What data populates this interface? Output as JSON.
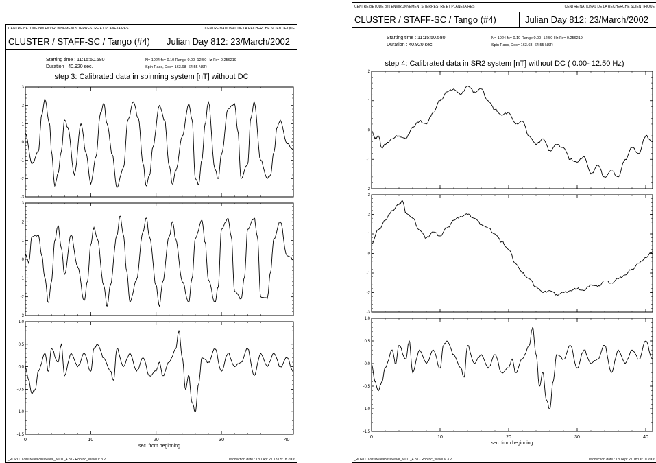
{
  "pages": [
    {
      "topbar_left": "CENTRE d'ETUDE des ENVIRONNEMENTS TERRESTRE ET PLANETAIRES",
      "topbar_right": "CENTRE NATIONAL DE LA RECHERCHE SCIENTIFIQUE",
      "header_title": "CLUSTER / STAFF-SC / Tango  (#4)",
      "header_julian": "Julian Day  812:  23/March/2002",
      "starting_time": "Starting time :  11:15:50.580",
      "duration": "Duration :    40.920 sec.",
      "params_line1": "N=    1024  fc=  0.10  Range    0.00-  12.50 Hz  Fs=  0.256219",
      "params_line2": "Spin Rasc, Dec=  163.68  -64.55  NSR",
      "plot_title": "step 3: Calibrated data in spinning system [nT] without DC",
      "xlabel": "sec. from beginning",
      "footer_left": "_ROPLOT/visuwave/visuwave_w001_4.ps   - Roproc_Wave V 3.2",
      "footer_right": "Production date : Thu Apr 27 18:05:18 2006"
    },
    {
      "topbar_left": "CENTRE d'ETUDE des ENVIRONNEMENTS TERRESTRE ET PLANETAIRES",
      "topbar_right": "CENTRE NATIONAL DE LA RECHERCHE SCIENTIFIQUE",
      "header_title": "CLUSTER / STAFF-SC / Tango  (#4)",
      "header_julian": "Julian Day  812:  23/March/2002",
      "starting_time": "Starting time :  11:15:50.580",
      "duration": "Duration :    40.920 sec.",
      "params_line1": "N=    1024  fc=  0.10  Range    0.00-  12.50 Hz  Fs=  0.256219",
      "params_line2": "Spin Rasc, Dec=  163.68  -64.55  NSR",
      "plot_title": "step 4: Calibrated data in SR2 system [nT] without DC  (  0.00-  12.50 Hz)",
      "xlabel": "sec. from beginning",
      "footer_left": "_ROPLOT/visuwave/visuwave_w001_4.ps   - Roproc_Wave V 3.2",
      "footer_right": "Production date : Thu Apr 27 18:06:10 2006"
    }
  ],
  "chart_data": [
    {
      "type": "line",
      "title": "step 3: Calibrated data in spinning system [nT] without DC",
      "xlabel": "sec. from beginning",
      "xlim": [
        0,
        41
      ],
      "xticks": [
        0,
        10,
        20,
        30,
        40
      ],
      "panels": [
        {
          "ylim": [
            -3,
            3
          ],
          "yticks": [
            -3,
            -2,
            -1,
            0,
            1,
            2,
            3
          ],
          "x": [
            0,
            1,
            2,
            2.5,
            3,
            3.7,
            4,
            4.5,
            5,
            5.5,
            6,
            6.5,
            7.5,
            8.5,
            9.3,
            10,
            10.8,
            11.5,
            12,
            12.5,
            13.3,
            14,
            15,
            15.7,
            16.5,
            17.3,
            18,
            18.5,
            19,
            19.5,
            20.5,
            21.3,
            22,
            22.5,
            23,
            24,
            25,
            25.5,
            26,
            26.5,
            27,
            27.5,
            28,
            29,
            29.5,
            30,
            31,
            32,
            32.5,
            33,
            34,
            34.5,
            35,
            36,
            37,
            37.5,
            38,
            38.5,
            39,
            40,
            41
          ],
          "y": [
            0.5,
            -1.2,
            -0.5,
            1.5,
            2.3,
            1.0,
            -0.5,
            -2.4,
            -1.7,
            -0.5,
            1.2,
            0.8,
            -1.8,
            1.0,
            -0.6,
            -2.3,
            -0.8,
            1.6,
            2.1,
            1.0,
            -0.7,
            -2.5,
            -1.4,
            1.2,
            2.2,
            1.3,
            -1.2,
            -2.4,
            -1.8,
            -0.3,
            2.0,
            1.2,
            -1.3,
            -2.3,
            -1.6,
            0.3,
            2.1,
            1.2,
            -2.0,
            -2.3,
            -1.0,
            1.0,
            2.2,
            -1.5,
            -2.0,
            -0.7,
            1.8,
            2.1,
            0.6,
            -2.0,
            -1.2,
            1.3,
            2.2,
            -1.0,
            -2.0,
            -1.8,
            -0.6,
            0.8,
            1.2,
            -0.1,
            -0.4
          ]
        },
        {
          "ylim": [
            -3,
            3
          ],
          "yticks": [
            -3,
            -2,
            -1,
            0,
            1,
            2,
            3
          ],
          "x": [
            0,
            0.5,
            1,
            2,
            2.5,
            3,
            3.5,
            4,
            4.5,
            5,
            5.5,
            6,
            7,
            8,
            9,
            9.5,
            10,
            10.5,
            11,
            12,
            12.5,
            13,
            14,
            14.5,
            15,
            15.5,
            16,
            17,
            18,
            18.5,
            19,
            20,
            20.5,
            21,
            22,
            22.5,
            23,
            24,
            25,
            25.5,
            26,
            27,
            27.5,
            28,
            29,
            29.5,
            30,
            31,
            31.5,
            32,
            33,
            33.5,
            34,
            35,
            35.5,
            36,
            37,
            37.5,
            38,
            39,
            40,
            41
          ],
          "y": [
            0.3,
            -0.2,
            1.2,
            1.3,
            0.2,
            -1.0,
            -2.3,
            -1.2,
            1.0,
            1.8,
            0.6,
            -0.8,
            1.3,
            -0.4,
            -2.2,
            -1.2,
            0.8,
            1.7,
            1.1,
            -1.4,
            -2.5,
            -1.4,
            1.3,
            2.3,
            1.3,
            -0.6,
            -2.3,
            -1.1,
            1.5,
            2.2,
            1.2,
            -1.4,
            -2.5,
            -1.2,
            1.2,
            2.0,
            1.1,
            -1.2,
            -2.3,
            -1.0,
            1.1,
            2.1,
            0.9,
            -1.1,
            -2.3,
            -1.5,
            1.6,
            2.2,
            1.2,
            -1.7,
            -2.1,
            -1.0,
            1.6,
            2.2,
            1.2,
            -2.0,
            -2.1,
            -0.7,
            1.1,
            2.0,
            0.2,
            0.0
          ]
        },
        {
          "ylim": [
            -1.5,
            1.0
          ],
          "yticks": [
            -1.5,
            -1.0,
            -0.5,
            0.0,
            0.5,
            1.0
          ],
          "x": [
            0,
            0.5,
            1,
            1.5,
            2,
            3,
            3.5,
            4,
            5,
            5.5,
            6,
            7,
            8,
            9,
            10,
            10.5,
            11,
            12,
            13,
            13.5,
            14,
            15,
            16,
            17,
            18,
            19,
            20,
            20.5,
            21,
            22,
            23,
            23.5,
            24,
            24.5,
            25,
            25.5,
            26,
            26.5,
            27,
            28,
            29,
            30,
            31,
            32,
            33,
            34,
            35,
            36,
            37,
            38,
            39,
            40,
            41
          ],
          "y": [
            0.0,
            -0.3,
            -0.6,
            -0.5,
            -0.1,
            0.3,
            -0.1,
            0.4,
            0.1,
            0.5,
            -0.2,
            0.3,
            0.0,
            0.3,
            -0.1,
            0.4,
            0.5,
            0.2,
            -0.1,
            -0.3,
            0.4,
            0.0,
            0.3,
            -0.1,
            0.2,
            -0.2,
            -0.1,
            0.1,
            -0.2,
            0.1,
            0.4,
            0.8,
            0.2,
            -0.5,
            -0.2,
            -0.8,
            -1.0,
            -0.4,
            0.2,
            0.1,
            0.4,
            -0.1,
            0.3,
            0.0,
            0.1,
            0.4,
            -0.2,
            0.3,
            0.0,
            0.3,
            0.0,
            0.2,
            -0.1
          ]
        }
      ]
    },
    {
      "type": "line",
      "title": "step 4: Calibrated data in SR2 system [nT] without DC  (  0.00-  12.50 Hz)",
      "xlabel": "sec. from beginning",
      "xlim": [
        0,
        41
      ],
      "xticks": [
        0,
        10,
        20,
        30,
        40
      ],
      "panels": [
        {
          "ylim": [
            -2,
            2
          ],
          "yticks": [
            -2,
            -1,
            0,
            1,
            2
          ],
          "x": [
            0,
            0.5,
            1,
            1.5,
            2,
            3,
            4,
            5,
            6,
            7,
            8,
            9,
            10,
            11,
            12,
            13,
            14,
            15,
            16,
            17,
            18,
            19,
            20,
            21,
            22,
            23,
            24,
            25,
            26,
            27,
            28,
            29,
            30,
            31,
            32,
            33,
            34,
            35,
            36,
            37,
            38,
            39,
            40,
            41
          ],
          "y": [
            0.0,
            -0.3,
            -0.2,
            -0.6,
            -0.5,
            -0.3,
            -0.2,
            -0.3,
            0.1,
            0.3,
            0.2,
            0.6,
            1.0,
            1.3,
            1.4,
            1.2,
            1.5,
            1.3,
            1.4,
            1.0,
            0.7,
            0.5,
            0.6,
            0.2,
            0.3,
            -0.2,
            -0.5,
            -0.3,
            -0.7,
            -0.5,
            -0.6,
            -1.0,
            -1.1,
            -0.9,
            -1.5,
            -1.2,
            -1.6,
            -1.4,
            -1.6,
            -1.0,
            -0.6,
            -0.8,
            -0.2,
            -0.4
          ]
        },
        {
          "ylim": [
            -3,
            3
          ],
          "yticks": [
            -3,
            -2,
            -1,
            0,
            1,
            2,
            3
          ],
          "x": [
            0,
            1,
            2,
            3,
            4,
            4.5,
            5,
            6,
            7,
            8,
            9,
            10,
            11,
            12,
            13,
            14,
            15,
            16,
            17,
            18,
            19,
            20,
            21,
            22,
            23,
            24,
            25,
            26,
            27,
            28,
            29,
            30,
            31,
            32,
            33,
            34,
            35,
            36,
            37,
            38,
            39,
            40,
            41
          ],
          "y": [
            0.5,
            1.2,
            1.7,
            2.2,
            2.5,
            2.7,
            2.1,
            1.8,
            1.2,
            0.8,
            1.1,
            0.9,
            1.3,
            1.7,
            1.9,
            2.0,
            1.8,
            1.5,
            1.3,
            1.0,
            0.6,
            0.2,
            -0.5,
            -1.0,
            -1.3,
            -1.7,
            -2.0,
            -1.9,
            -2.1,
            -2.0,
            -1.9,
            -1.8,
            -1.9,
            -1.6,
            -1.7,
            -1.4,
            -1.5,
            -1.3,
            -1.1,
            -0.8,
            -0.5,
            -0.2,
            0.1
          ]
        },
        {
          "ylim": [
            -1.5,
            1.0
          ],
          "yticks": [
            -1.5,
            -1.0,
            -0.5,
            0.0,
            0.5,
            1.0
          ],
          "x": [
            0,
            0.5,
            1,
            1.5,
            2,
            3,
            3.5,
            4,
            5,
            5.5,
            6,
            7,
            8,
            9,
            10,
            10.5,
            11,
            12,
            13,
            13.5,
            14,
            15,
            16,
            17,
            18,
            19,
            20,
            20.5,
            21,
            22,
            23,
            23.5,
            24,
            24.5,
            25,
            25.5,
            26,
            26.5,
            27,
            28,
            29,
            30,
            31,
            32,
            33,
            34,
            35,
            36,
            37,
            38,
            39,
            40,
            41
          ],
          "y": [
            0.0,
            -0.4,
            -0.6,
            -0.4,
            -0.1,
            0.3,
            0.0,
            0.4,
            0.1,
            0.5,
            -0.2,
            0.3,
            0.0,
            0.3,
            -0.1,
            0.4,
            0.5,
            0.2,
            -0.1,
            -0.3,
            0.4,
            0.0,
            0.2,
            -0.1,
            0.2,
            -0.2,
            -0.1,
            0.1,
            -0.2,
            0.1,
            0.4,
            0.8,
            0.2,
            -0.5,
            -0.2,
            -0.8,
            -1.0,
            -0.4,
            0.2,
            0.1,
            0.4,
            -0.1,
            0.3,
            0.0,
            0.1,
            0.4,
            -0.2,
            0.3,
            0.0,
            0.3,
            0.1,
            0.5,
            0.1
          ]
        }
      ]
    }
  ]
}
